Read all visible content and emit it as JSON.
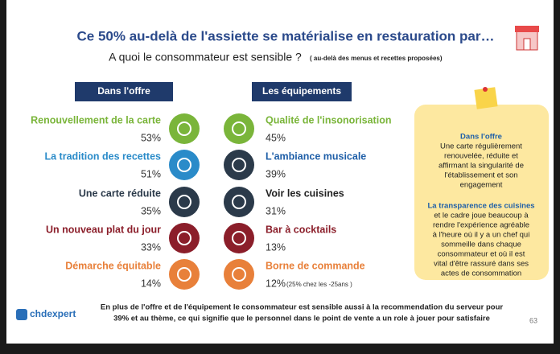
{
  "header": {
    "title": "Ce 50% au-delà de l'assiette se matérialise en restauration par…",
    "subtitle": "A quoi le consommateur est sensible ?",
    "subtitle_note": "( au-delà des menus et recettes proposées)"
  },
  "columns": [
    {
      "heading": "Dans l'offre",
      "items": [
        {
          "label": "Renouvellement de la carte",
          "percent": "53%"
        },
        {
          "label": "La tradition des recettes",
          "percent": "51%"
        },
        {
          "label": "Une carte réduite",
          "percent": "35%"
        },
        {
          "label": "Un nouveau plat du jour",
          "percent": "33%"
        },
        {
          "label": "Démarche équitable",
          "percent": "14%"
        }
      ]
    },
    {
      "heading": "Les équipements",
      "items": [
        {
          "label": "Qualité de l'insonorisation",
          "percent": "45%"
        },
        {
          "label": "L'ambiance musicale",
          "percent": "39%"
        },
        {
          "label": "Voir les cuisines",
          "percent": "31%"
        },
        {
          "label": "Bar à cocktails",
          "percent": "13%"
        },
        {
          "label": "Borne de commande",
          "percent": "12%",
          "note": "(25% chez les -25ans )"
        }
      ]
    }
  ],
  "note_box": {
    "sections": [
      {
        "heading": "Dans l'offre",
        "lines": [
          "Une carte régulièrement",
          "renouvelée, réduite et",
          "affirmant la singularité de",
          "l'établissement et son",
          "engagement"
        ]
      },
      {
        "heading": "La transparence des cuisines",
        "lines": [
          "et le cadre joue beaucoup à",
          "rendre l'expérience agréable",
          "à l'heure où il y a un chef qui",
          "sommeille dans chaque",
          "consommateur et où il est",
          "vital d'être rassuré dans ses",
          "actes de consommation"
        ]
      }
    ]
  },
  "footer": {
    "lines": [
      "En plus de l'offre et de l'équipement le consommateur est sensible aussi à la recommendation du serveur pour",
      "39% et au thème, ce qui signifie que le personnel dans le point de vente a un role à jouer pour satisfaire"
    ],
    "logo": "chdexpert",
    "page_number": "63"
  }
}
